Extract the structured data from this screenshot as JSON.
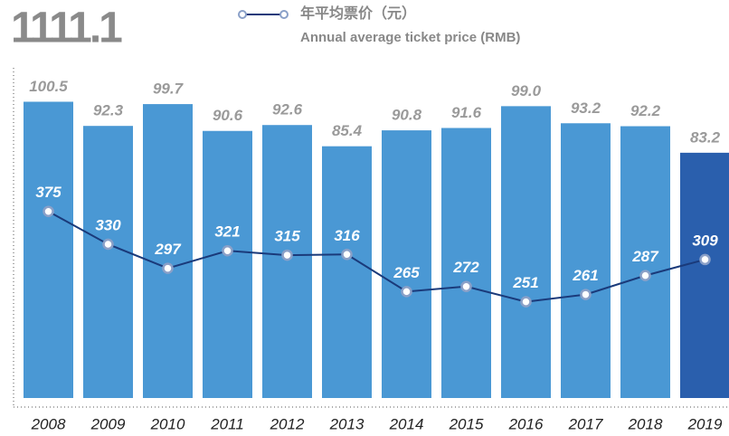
{
  "chart_data": {
    "type": "bar",
    "title": "1111.1",
    "categories": [
      "2008",
      "2009",
      "2010",
      "2011",
      "2012",
      "2013",
      "2014",
      "2015",
      "2016",
      "2017",
      "2018",
      "2019"
    ],
    "series": [
      {
        "type": "bar",
        "colors": [
          "#4a98d4",
          "#4a98d4",
          "#4a98d4",
          "#4a98d4",
          "#4a98d4",
          "#4a98d4",
          "#4a98d4",
          "#4a98d4",
          "#4a98d4",
          "#4a98d4",
          "#4a98d4",
          "#2a5fad"
        ],
        "values": [
          100.5,
          92.3,
          99.7,
          90.6,
          92.6,
          85.4,
          90.8,
          91.6,
          99.0,
          93.2,
          92.2,
          83.2
        ],
        "value_labels": [
          "100.5",
          "92.3",
          "99.7",
          "90.6",
          "92.6",
          "85.4",
          "90.8",
          "91.6",
          "99.0",
          "93.2",
          "92.2",
          "83.2"
        ]
      },
      {
        "type": "line",
        "axis": "y2",
        "color": "#1a3a7a",
        "name": "年平均票价（元）",
        "name_en": "Annual average ticket price (RMB)",
        "values": [
          375,
          330,
          297,
          321,
          315,
          316,
          265,
          272,
          251,
          261,
          287,
          309
        ]
      }
    ],
    "ylim": [
      0,
      112
    ],
    "y2lim": [
      119,
      572
    ]
  }
}
